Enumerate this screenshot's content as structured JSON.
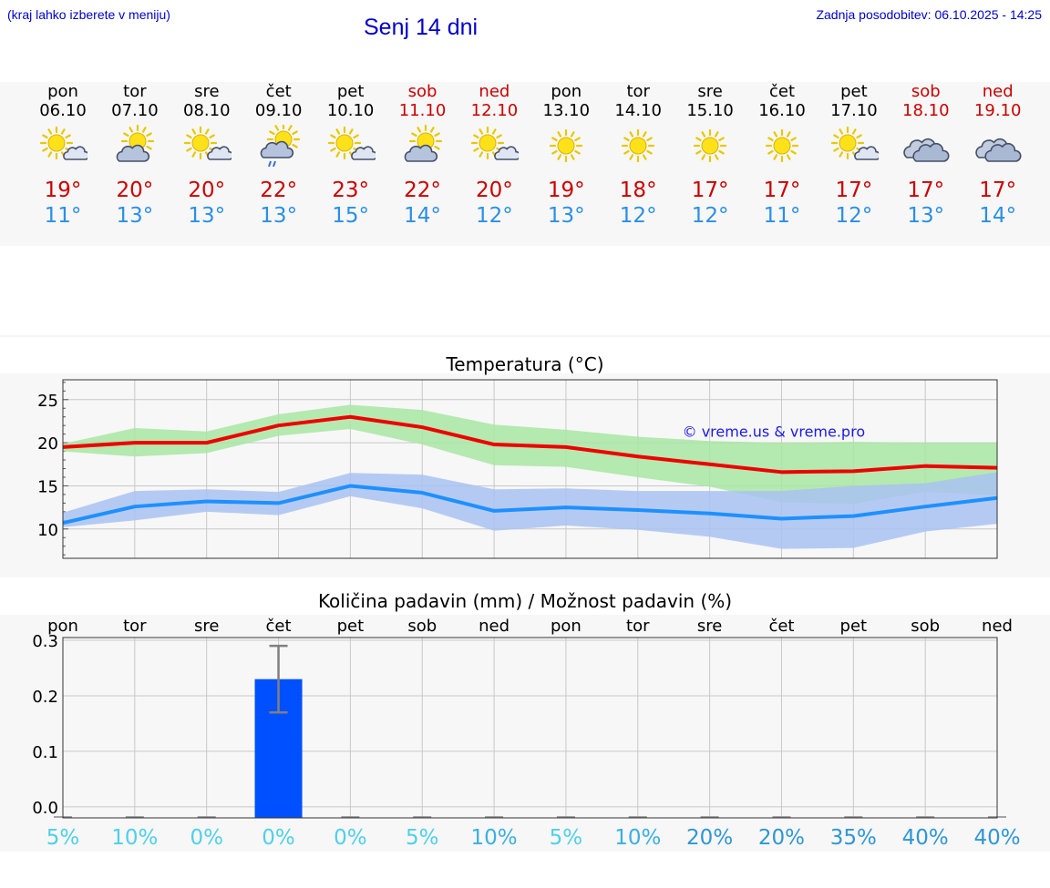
{
  "header": {
    "hint": "(kraj lahko izberete v meniju)",
    "title": "Senj 14 dni",
    "updated": "Zadnja posodobitev: 06.10.2025 - 14:25"
  },
  "colors": {
    "tmax": "#cc0000",
    "tmin": "#2b8fe6",
    "weekend": "#cc0000",
    "max_band": "#a8e6a3",
    "min_band": "#a9c2f2",
    "max_line": "#ee0000",
    "min_line": "#1e90ff",
    "bar": "#0050ff",
    "chance": [
      "#4fd0e8",
      "#3ab0e0",
      "#2f96d6"
    ]
  },
  "days": [
    {
      "name": "pon",
      "date": "06.10",
      "icon": "sun-cloud",
      "tmax": "19°",
      "tmin": "11°",
      "weekend": false
    },
    {
      "name": "tor",
      "date": "07.10",
      "icon": "cloud-sun",
      "tmax": "20°",
      "tmin": "13°",
      "weekend": false
    },
    {
      "name": "sre",
      "date": "08.10",
      "icon": "sun-cloud",
      "tmax": "20°",
      "tmin": "13°",
      "weekend": false
    },
    {
      "name": "čet",
      "date": "09.10",
      "icon": "cloud-sun-rain",
      "tmax": "22°",
      "tmin": "13°",
      "weekend": false
    },
    {
      "name": "pet",
      "date": "10.10",
      "icon": "sun-cloud",
      "tmax": "23°",
      "tmin": "15°",
      "weekend": false
    },
    {
      "name": "sob",
      "date": "11.10",
      "icon": "cloud-sun",
      "tmax": "22°",
      "tmin": "14°",
      "weekend": true
    },
    {
      "name": "ned",
      "date": "12.10",
      "icon": "sun-cloud",
      "tmax": "20°",
      "tmin": "12°",
      "weekend": true
    },
    {
      "name": "pon",
      "date": "13.10",
      "icon": "sun",
      "tmax": "19°",
      "tmin": "13°",
      "weekend": false
    },
    {
      "name": "tor",
      "date": "14.10",
      "icon": "sun",
      "tmax": "18°",
      "tmin": "12°",
      "weekend": false
    },
    {
      "name": "sre",
      "date": "15.10",
      "icon": "sun",
      "tmax": "17°",
      "tmin": "12°",
      "weekend": false
    },
    {
      "name": "čet",
      "date": "16.10",
      "icon": "sun",
      "tmax": "17°",
      "tmin": "11°",
      "weekend": false
    },
    {
      "name": "pet",
      "date": "17.10",
      "icon": "sun-cloud",
      "tmax": "17°",
      "tmin": "12°",
      "weekend": false
    },
    {
      "name": "sob",
      "date": "18.10",
      "icon": "clouds",
      "tmax": "17°",
      "tmin": "13°",
      "weekend": true
    },
    {
      "name": "ned",
      "date": "19.10",
      "icon": "clouds",
      "tmax": "17°",
      "tmin": "14°",
      "weekend": true
    }
  ],
  "chart_data": [
    {
      "type": "line",
      "title": "Temperatura (°C)",
      "x": [
        "pon",
        "tor",
        "sre",
        "čet",
        "pet",
        "sob",
        "ned",
        "pon",
        "tor",
        "sre",
        "čet",
        "pet",
        "sob",
        "ned"
      ],
      "ylim": [
        6.6,
        27.3
      ],
      "yticks": [
        10,
        15,
        20,
        25
      ],
      "grid": true,
      "watermark": "© vreme.us & vreme.pro",
      "series": [
        {
          "role": "max",
          "values": [
            19.5,
            20.0,
            20.0,
            22.0,
            23.0,
            21.8,
            19.8,
            19.5,
            18.4,
            17.5,
            16.6,
            16.7,
            17.3,
            17.1
          ]
        },
        {
          "role": "min",
          "values": [
            10.7,
            12.6,
            13.2,
            13.0,
            15.0,
            14.2,
            12.1,
            12.5,
            12.2,
            11.8,
            11.2,
            11.5,
            12.6,
            13.6
          ]
        },
        {
          "role": "max-range",
          "low": [
            19.0,
            18.4,
            18.8,
            20.8,
            21.6,
            19.8,
            17.4,
            17.2,
            16.0,
            14.9,
            13.1,
            12.9,
            14.3,
            13.9
          ],
          "high": [
            19.9,
            21.7,
            21.3,
            23.3,
            24.4,
            23.8,
            22.1,
            21.5,
            20.7,
            20.2,
            20.0,
            20.1,
            20.0,
            20.0
          ]
        },
        {
          "role": "min-range",
          "low": [
            10.2,
            11.0,
            12.0,
            11.6,
            13.8,
            12.4,
            9.8,
            10.4,
            9.9,
            9.1,
            7.7,
            7.8,
            9.7,
            10.6
          ],
          "high": [
            11.9,
            14.4,
            14.6,
            14.3,
            16.5,
            16.3,
            14.6,
            14.7,
            14.4,
            14.4,
            14.4,
            15.0,
            15.3,
            16.6
          ]
        }
      ]
    },
    {
      "type": "bar",
      "title": "Količina padavin (mm) / Možnost padavin (%)",
      "categories": [
        "pon",
        "tor",
        "sre",
        "čet",
        "pet",
        "sob",
        "ned",
        "pon",
        "tor",
        "sre",
        "čet",
        "pet",
        "sob",
        "ned"
      ],
      "values": [
        0,
        0,
        0,
        0.23,
        0,
        0,
        0,
        0,
        0,
        0,
        0,
        0,
        0,
        0
      ],
      "error_low": [
        0,
        0,
        0,
        0.17,
        0,
        0,
        0,
        0,
        0,
        0,
        0,
        0,
        0,
        0
      ],
      "error_high": [
        0,
        0,
        0,
        0.29,
        0,
        0,
        0,
        0,
        0,
        0,
        0,
        0,
        0,
        0
      ],
      "ylim": [
        -0.02,
        0.305
      ],
      "yticks": [
        "0.0",
        "0.1",
        "0.2",
        "0.3"
      ],
      "ytick_values": [
        0,
        0.1,
        0.2,
        0.3
      ],
      "chance": [
        "5%",
        "10%",
        "0%",
        "0%",
        "0%",
        "5%",
        "10%",
        "5%",
        "10%",
        "20%",
        "20%",
        "35%",
        "40%",
        "40%"
      ],
      "chance_level": [
        0,
        0,
        0,
        0,
        0,
        0,
        1,
        0,
        1,
        2,
        2,
        2,
        2,
        2
      ],
      "grid": true
    }
  ]
}
